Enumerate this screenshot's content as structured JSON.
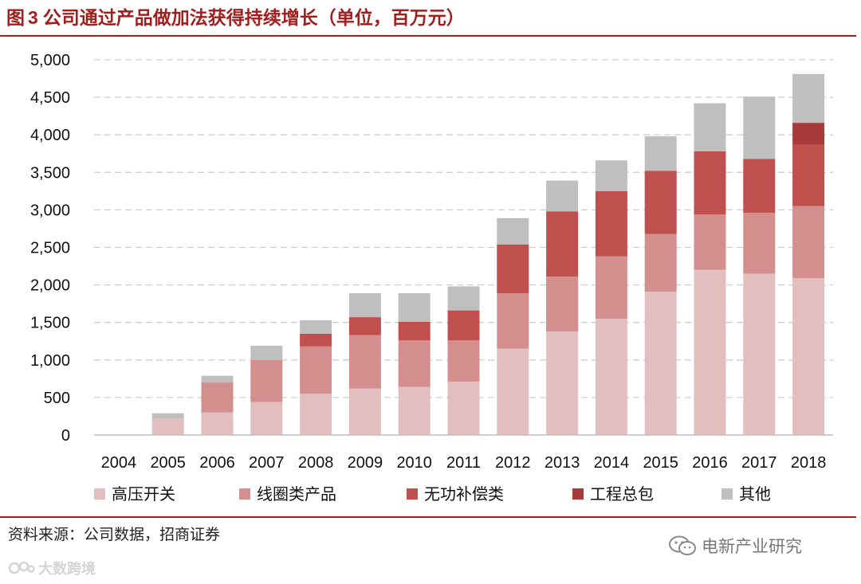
{
  "header": {
    "figure_label": "图",
    "figure_number": "3",
    "title": "公司通过产品做加法获得持续增长（单位，百万元）"
  },
  "chart_data": {
    "type": "bar",
    "stacked": true,
    "title": "公司通过产品做加法获得持续增长（单位，百万元）",
    "xlabel": "",
    "ylabel": "",
    "ylim": [
      0,
      5000
    ],
    "yticks": [
      0,
      500,
      1000,
      1500,
      2000,
      2500,
      3000,
      3500,
      4000,
      4500,
      5000
    ],
    "ytick_labels": [
      "0",
      "500",
      "1,000",
      "1,500",
      "2,000",
      "2,500",
      "3,000",
      "3,500",
      "4,000",
      "4,500",
      "5,000"
    ],
    "grid": "horizontal dashed",
    "legend_position": "bottom",
    "categories": [
      "2004",
      "2005",
      "2006",
      "2007",
      "2008",
      "2009",
      "2010",
      "2011",
      "2012",
      "2013",
      "2014",
      "2015",
      "2016",
      "2017",
      "2018"
    ],
    "series": [
      {
        "name": "高压开关",
        "color": "#e3bebe",
        "values": [
          5,
          220,
          300,
          440,
          550,
          620,
          640,
          710,
          1150,
          1380,
          1550,
          1910,
          2200,
          2150,
          2090
        ]
      },
      {
        "name": "线圈类产品",
        "color": "#d38e8e",
        "values": [
          0,
          0,
          400,
          560,
          630,
          710,
          620,
          550,
          740,
          730,
          830,
          770,
          740,
          810,
          960
        ]
      },
      {
        "name": "无功补偿类",
        "color": "#c0504d",
        "values": [
          0,
          0,
          0,
          0,
          170,
          240,
          250,
          400,
          650,
          870,
          870,
          840,
          840,
          720,
          820
        ]
      },
      {
        "name": "工程总包",
        "color": "#a63b39",
        "values": [
          0,
          0,
          0,
          0,
          0,
          0,
          0,
          0,
          0,
          0,
          0,
          0,
          0,
          0,
          290
        ]
      },
      {
        "name": "其他",
        "color": "#bfbfbf",
        "values": [
          0,
          70,
          90,
          190,
          180,
          320,
          380,
          320,
          350,
          410,
          410,
          460,
          640,
          830,
          650
        ]
      }
    ]
  },
  "footer": {
    "source": "资料来源：公司数据，招商证券",
    "brand": "电新产业研究",
    "watermark": "大数跨境"
  }
}
